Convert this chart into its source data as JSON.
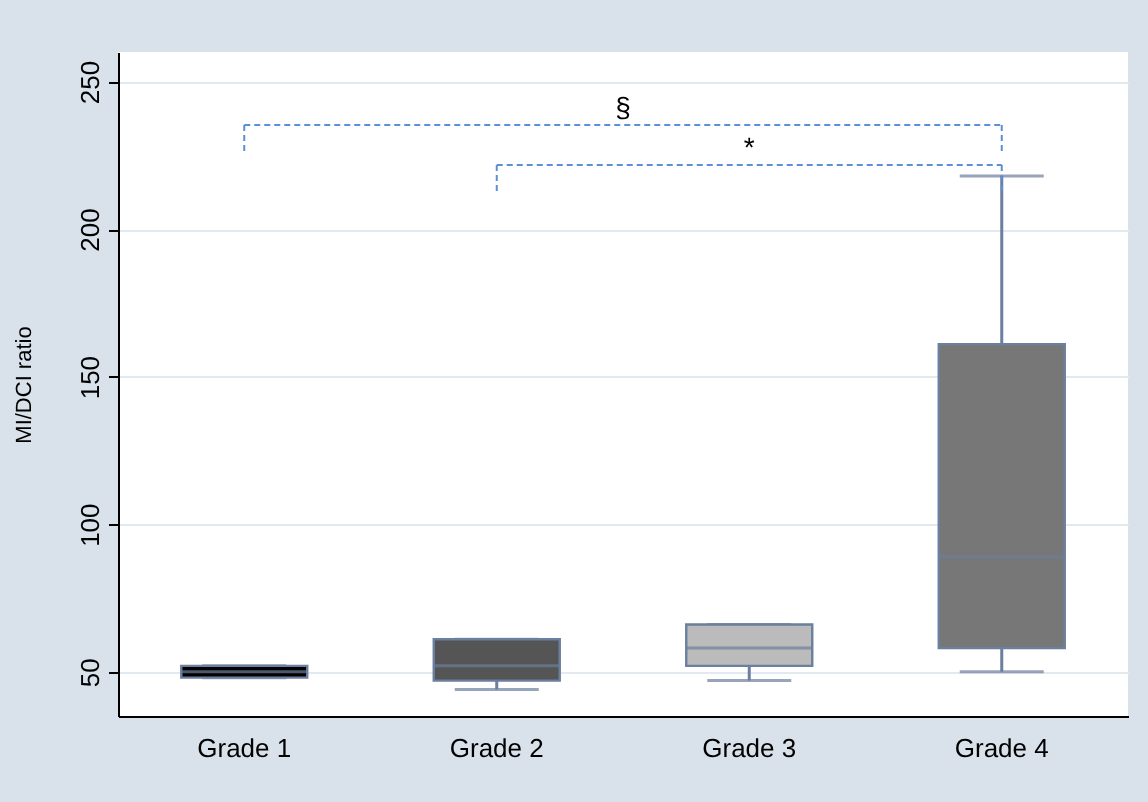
{
  "chart_data": {
    "type": "box",
    "ylabel": "MI/DCI ratio",
    "categories": [
      "Grade 1",
      "Grade 2",
      "Grade 3",
      "Grade 4"
    ],
    "boxes": [
      {
        "low": 48,
        "q1": 48,
        "median": 50,
        "q3": 52,
        "high": 52
      },
      {
        "low": 44,
        "q1": 47,
        "median": 52,
        "q3": 61,
        "high": 61
      },
      {
        "low": 47,
        "q1": 52,
        "median": 58,
        "q3": 66,
        "high": 66
      },
      {
        "low": 50,
        "q1": 58,
        "median": 89,
        "q3": 161,
        "high": 218
      }
    ],
    "colors": [
      "#000000",
      "#555555",
      "#bbbbbb",
      "#777777"
    ],
    "ylim": [
      35,
      260
    ],
    "yticks": [
      50,
      100,
      150,
      200,
      250
    ],
    "grid": "y",
    "annotations": [
      "§",
      "*"
    ]
  }
}
